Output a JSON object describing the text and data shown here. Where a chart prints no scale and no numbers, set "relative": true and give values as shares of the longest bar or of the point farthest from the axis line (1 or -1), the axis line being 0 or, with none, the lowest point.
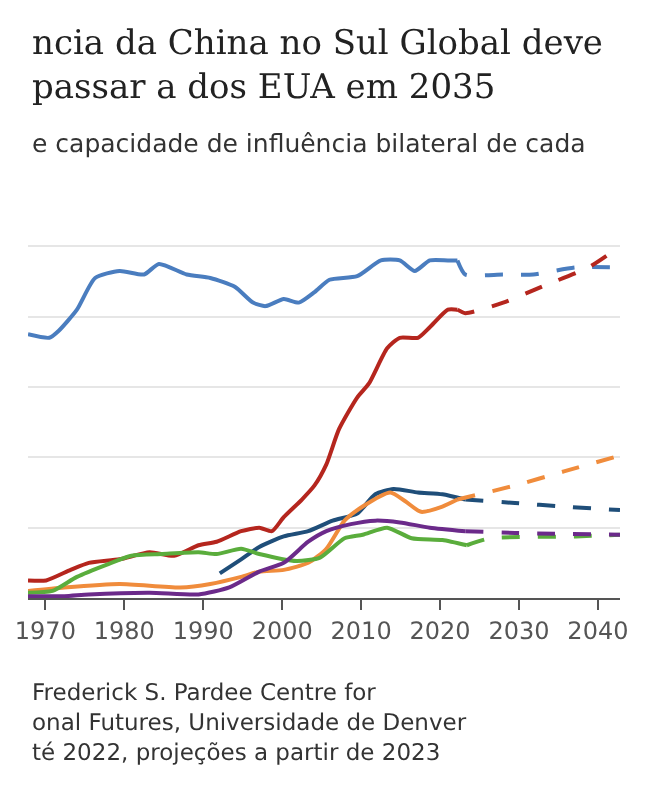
{
  "chart_data": {
    "type": "line",
    "title": "ncia da China no Sul Global deve\npassar a dos EUA em 2035",
    "subtitle": "e capacidade de influência bilateral de cada",
    "relative": true,
    "xlim": [
      1967.8,
      2042.8
    ],
    "xticks": [
      1970,
      1980,
      1990,
      2000,
      2010,
      2020,
      2030,
      2040
    ],
    "grid": "y",
    "marker": "none",
    "annotations": [
      "Frederick S. Pardee Centre for",
      "onal Futures, Universidade de Denver",
      "té 2022, projeções a partir de 2023"
    ],
    "series": [
      {
        "color": "#4a7dbf",
        "line_style": "solid",
        "x": [
          1967.8,
          1970.5,
          1971.7,
          1974,
          1976.3,
          1979.4,
          1982.5,
          1984.4,
          1987.9,
          1990.9,
          1994,
          1996.3,
          1997.9,
          2000.2,
          2002.1,
          2004.1,
          2006,
          2009.5,
          2012.5,
          2014.9,
          2016.8,
          2018.7,
          2021,
          2022.2
        ],
        "values": [
          0.75,
          0.74,
          0.76,
          0.82,
          0.91,
          0.93,
          0.92,
          0.95,
          0.92,
          0.91,
          0.885,
          0.84,
          0.83,
          0.85,
          0.84,
          0.87,
          0.905,
          0.915,
          0.96,
          0.96,
          0.93,
          0.96,
          0.96,
          0.96
        ]
      },
      {
        "color": "#4a7dbf",
        "line_style": "dashed",
        "x": [
          2022.2,
          2023.2,
          2028,
          2031.8,
          2037.2,
          2042.8
        ],
        "values": [
          0.96,
          0.92,
          0.92,
          0.92,
          0.94,
          0.94
        ]
      },
      {
        "color": "#b5261e",
        "line_style": "solid",
        "x": [
          1967.8,
          1970.1,
          1973.2,
          1975.5,
          1979.4,
          1983.2,
          1986.3,
          1989.4,
          1991.7,
          1994.8,
          1997.1,
          1998.7,
          2000.2,
          2002.5,
          2004.1,
          2005.6,
          2007.2,
          2009.5,
          2011,
          2013.3,
          2014.9,
          2017.2,
          2018.7,
          2021,
          2022.2
        ],
        "values": [
          0.05,
          0.05,
          0.08,
          0.1,
          0.11,
          0.13,
          0.12,
          0.15,
          0.16,
          0.19,
          0.2,
          0.19,
          0.23,
          0.28,
          0.32,
          0.38,
          0.48,
          0.57,
          0.61,
          0.71,
          0.74,
          0.74,
          0.77,
          0.82,
          0.82
        ]
      },
      {
        "color": "#b5261e",
        "line_style": "dashed",
        "x": [
          2022.2,
          2023.2,
          2028,
          2033.4,
          2038.8,
          2042.8
        ],
        "values": [
          0.82,
          0.81,
          0.84,
          0.89,
          0.94,
          1.0
        ]
      },
      {
        "color": "#1f4e79",
        "line_style": "solid",
        "x": [
          1992.1,
          1994.8,
          1997.1,
          2000.2,
          2003.3,
          2006.4,
          2009.5,
          2011.8,
          2014.1,
          2017.2,
          2020.3,
          2023.2
        ],
        "values": [
          0.07,
          0.11,
          0.145,
          0.175,
          0.19,
          0.22,
          0.24,
          0.295,
          0.31,
          0.3,
          0.295,
          0.28
        ]
      },
      {
        "color": "#1f4e79",
        "line_style": "dashed",
        "x": [
          2023.2,
          2029.5,
          2035.7,
          2042.8
        ],
        "values": [
          0.28,
          0.27,
          0.26,
          0.25
        ]
      },
      {
        "color": "#f08c3c",
        "line_style": "solid",
        "x": [
          1967.8,
          1972.4,
          1979.4,
          1987.1,
          1990.9,
          1994.8,
          1997.1,
          2000.2,
          2003.3,
          2005.6,
          2007.9,
          2010.2,
          2013.7,
          2015.6,
          2017.6,
          2020.3,
          2022.2
        ],
        "values": [
          0.02,
          0.03,
          0.04,
          0.03,
          0.04,
          0.06,
          0.075,
          0.08,
          0.1,
          0.14,
          0.22,
          0.26,
          0.3,
          0.275,
          0.245,
          0.26,
          0.28
        ]
      },
      {
        "color": "#f08c3c",
        "line_style": "dashed",
        "x": [
          2022.2,
          2029.5,
          2035.7,
          2042.8
        ],
        "values": [
          0.28,
          0.32,
          0.36,
          0.405
        ]
      },
      {
        "color": "#5aad3c",
        "line_style": "solid",
        "x": [
          1967.8,
          1970.9,
          1974,
          1977.8,
          1980.9,
          1984.8,
          1989.4,
          1991.7,
          1994.8,
          1997.1,
          2001.8,
          2004.8,
          2007.9,
          2010.2,
          2013.3,
          2016.4,
          2020.3,
          2023.4
        ],
        "values": [
          0.015,
          0.02,
          0.06,
          0.095,
          0.12,
          0.125,
          0.13,
          0.125,
          0.14,
          0.125,
          0.105,
          0.115,
          0.17,
          0.18,
          0.2,
          0.17,
          0.165,
          0.15
        ]
      },
      {
        "color": "#5aad3c",
        "line_style": "dashed",
        "x": [
          2023.4,
          2026.4,
          2037.2,
          2042.8
        ],
        "values": [
          0.15,
          0.17,
          0.175,
          0.18
        ]
      },
      {
        "color": "#6b2a8a",
        "line_style": "solid",
        "x": [
          1967.8,
          1972.4,
          1975.5,
          1983.2,
          1989.4,
          1993.3,
          1997.1,
          2000.2,
          2003.3,
          2005.6,
          2008.7,
          2011.8,
          2014.9,
          2018.7,
          2023.2
        ],
        "values": [
          0.005,
          0.005,
          0.01,
          0.015,
          0.01,
          0.03,
          0.075,
          0.1,
          0.16,
          0.19,
          0.21,
          0.22,
          0.215,
          0.2,
          0.19
        ]
      },
      {
        "color": "#6b2a8a",
        "line_style": "dashed",
        "x": [
          2023.2,
          2029.5,
          2042.8
        ],
        "values": [
          0.19,
          0.185,
          0.18
        ]
      }
    ]
  }
}
